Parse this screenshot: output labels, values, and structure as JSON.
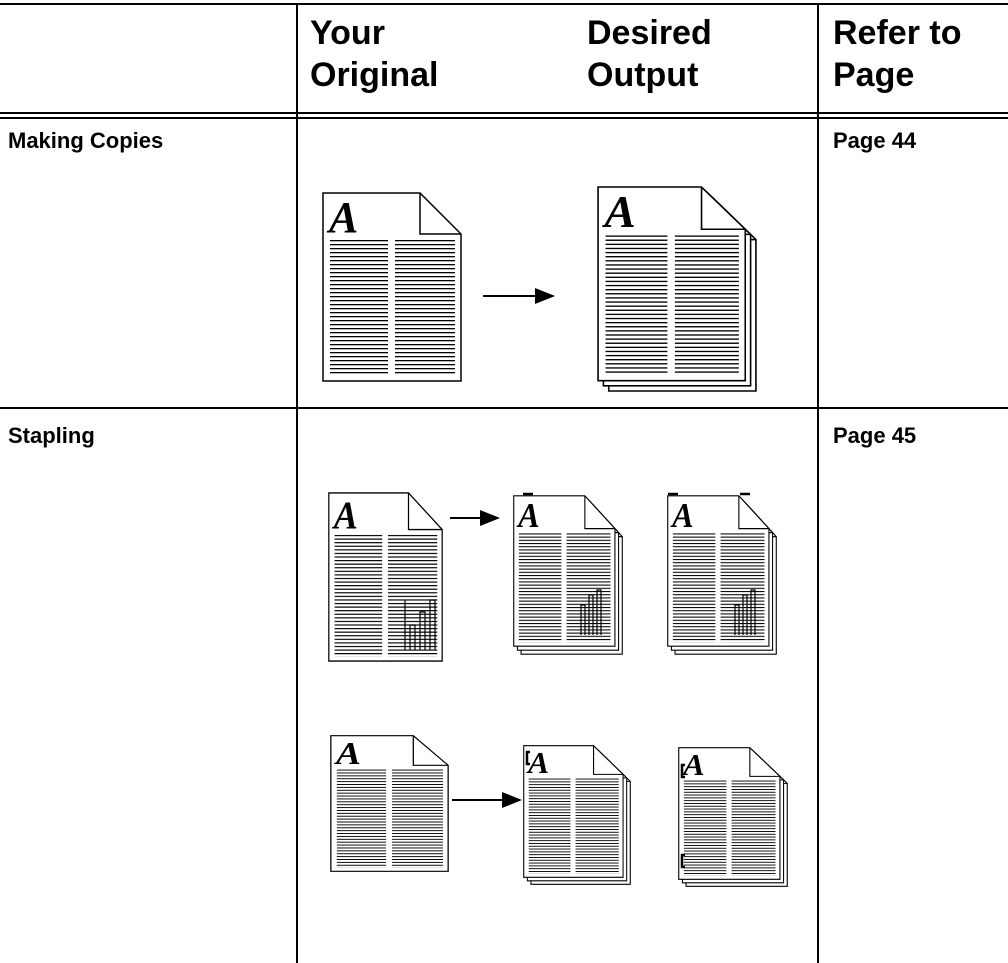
{
  "header": {
    "original": "Your Original",
    "output": "Desired Output",
    "refer": "Refer to Page"
  },
  "rows": [
    {
      "label": "Making Copies",
      "page": "Page 44"
    },
    {
      "label": "Stapling",
      "page": "Page 45"
    }
  ]
}
